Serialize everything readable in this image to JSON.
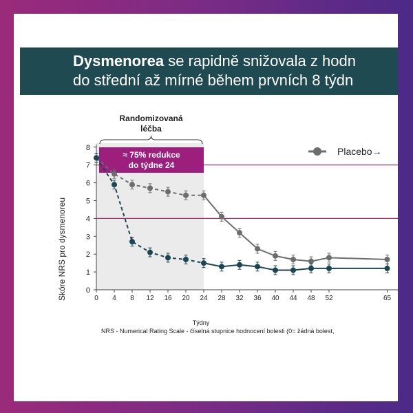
{
  "header": {
    "title_bold": "Dysmenorea",
    "title_rest": " se rapidně snižovala z hodn",
    "title_line2": "do střední až mírné během prvních 8 týdn"
  },
  "footnote": "NRS - Numerical Rating Scale - číselná stupnice hodnocení bolesti (0= žádná bolest,",
  "chart_data": {
    "type": "line",
    "ylabel": "Skóre NRS pro dysmenoreu",
    "xlabel": "Týdny",
    "xlim": [
      0,
      65
    ],
    "ylim": [
      0,
      8
    ],
    "x_ticks": [
      0,
      4,
      8,
      12,
      16,
      20,
      24,
      28,
      32,
      36,
      40,
      44,
      48,
      52,
      65
    ],
    "x_tick_labels": [
      "0",
      "4",
      "8",
      "12",
      "16",
      "20",
      "24",
      "28",
      "32",
      "36",
      "40",
      "44",
      "48",
      "52",
      "65"
    ],
    "y_ticks": [
      0,
      1,
      2,
      3,
      4,
      5,
      6,
      7,
      8
    ],
    "reference_lines_y": [
      7,
      4
    ],
    "shaded_period": {
      "x_range": [
        0,
        24
      ],
      "label": "Randomizovaná léčba",
      "callout": "≈ 75% redukce do týdne 24"
    },
    "series": [
      {
        "name": "Placebo",
        "legend_label": "Placebo→",
        "color": "#6d6d6d",
        "x": [
          0,
          4,
          8,
          12,
          16,
          20,
          24,
          28,
          32,
          36,
          40,
          44,
          48,
          52,
          65
        ],
        "values": [
          7.4,
          6.5,
          5.9,
          5.7,
          5.5,
          5.3,
          5.3,
          4.1,
          3.2,
          2.3,
          1.9,
          1.7,
          1.6,
          1.8,
          1.7
        ],
        "errors": [
          0.25,
          0.25,
          0.25,
          0.25,
          0.25,
          0.25,
          0.25,
          0.25,
          0.25,
          0.25,
          0.25,
          0.25,
          0.25,
          0.25,
          0.25
        ],
        "dashed_until": 24
      },
      {
        "color": "#1b4550",
        "x": [
          0,
          4,
          8,
          12,
          16,
          20,
          24,
          28,
          32,
          36,
          40,
          44,
          48,
          52,
          65
        ],
        "values": [
          7.4,
          5.9,
          2.7,
          2.1,
          1.8,
          1.7,
          1.5,
          1.3,
          1.4,
          1.3,
          1.1,
          1.1,
          1.2,
          1.2,
          1.2
        ],
        "errors": [
          0.25,
          0.25,
          0.25,
          0.25,
          0.25,
          0.25,
          0.25,
          0.25,
          0.25,
          0.25,
          0.25,
          0.25,
          0.25,
          0.25,
          0.25
        ],
        "dashed_until": 24
      }
    ]
  },
  "colors": {
    "title_bg": "#1f4a52",
    "callout_bg": "#9c1f7e",
    "reference_line": "#a0266f",
    "shade": "#ebebeb"
  }
}
